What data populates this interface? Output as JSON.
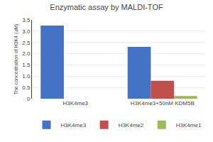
{
  "chart_data": {
    "type": "bar",
    "title": "Enzymatic assay by MALDI-TOF",
    "ylabel": "The concentration of H3K4 (uM)",
    "categories": [
      "H3K4me3",
      "H3K4me3+50nM KDM5B"
    ],
    "series": [
      {
        "name": "H3K4me3",
        "color": "#4472C4",
        "values": [
          3.25,
          2.3
        ]
      },
      {
        "name": "H3K4me2",
        "color": "#C0504D",
        "values": [
          0.0,
          0.8
        ]
      },
      {
        "name": "H3K4me1",
        "color": "#9BBB59",
        "values": [
          0.0,
          0.12
        ]
      }
    ],
    "ylim": [
      0,
      3.5
    ],
    "yticks": [
      0,
      0.5,
      {
        "value": 1.0,
        "label": "1.0"
      },
      1.5,
      {
        "value": 2.0,
        "label": "2.0"
      },
      2.5,
      {
        "value": 3.0,
        "label": "3.0"
      },
      3.5
    ],
    "grid": true,
    "legend": "bottom"
  }
}
